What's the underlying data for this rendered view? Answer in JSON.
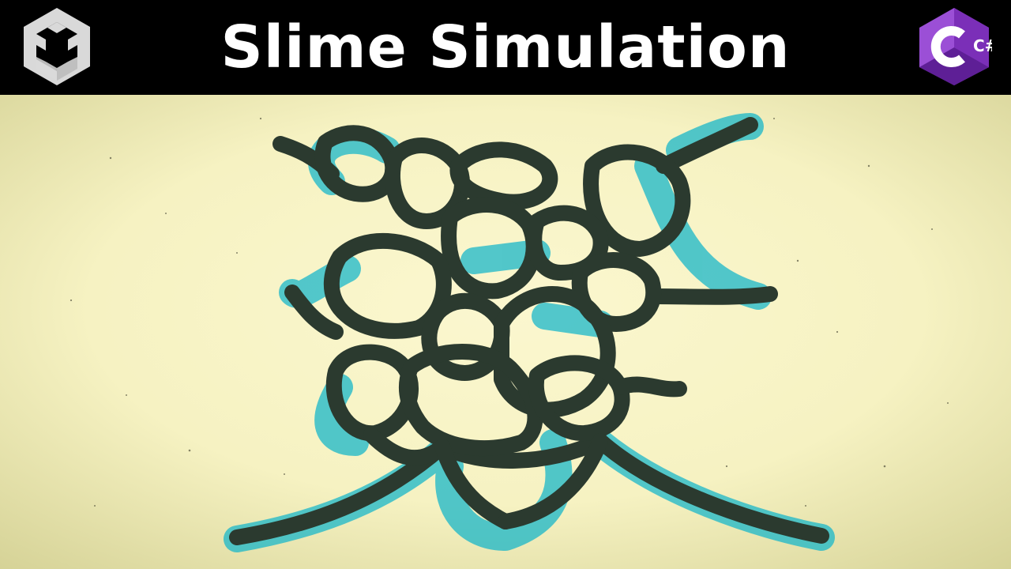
{
  "header": {
    "title": "Slime Simulation",
    "left_logo_icon": "unity-logo-icon",
    "right_logo_icon": "csharp-logo-icon",
    "right_logo_text": "C#"
  },
  "scene": {
    "background_color": "#f6f2c2",
    "vignette_color": "#d8d59a",
    "network_color": "#2b3a2f",
    "glow_color": "#19b7c9"
  }
}
